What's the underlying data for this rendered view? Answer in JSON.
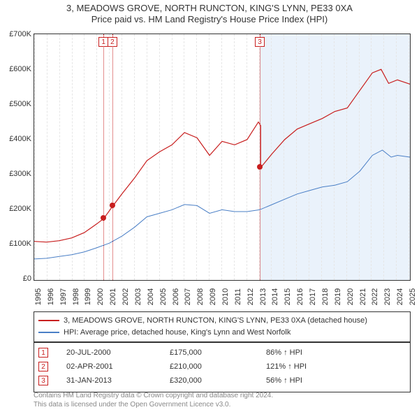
{
  "title_line1": "3, MEADOWS GROVE, NORTH RUNCTON, KING'S LYNN, PE33 0XA",
  "title_line2": "Price paid vs. HM Land Registry's House Price Index (HPI)",
  "chart": {
    "type": "line",
    "background_color": "#ffffff",
    "grid_color": "#e6e6e6",
    "border_color": "#333333",
    "shaded_region_color": "#eaf2fb",
    "marker_line_color": "#c81e1e",
    "x_range_years": [
      1995,
      2025
    ],
    "y_range_gbp": [
      0,
      700000
    ],
    "y_tick_step": 100000,
    "y_tick_labels": [
      "£0",
      "£100K",
      "£200K",
      "£300K",
      "£400K",
      "£500K",
      "£600K",
      "£700K"
    ],
    "x_ticks_years": [
      1995,
      1996,
      1997,
      1998,
      1999,
      2000,
      2001,
      2002,
      2003,
      2004,
      2005,
      2006,
      2007,
      2008,
      2009,
      2010,
      2011,
      2012,
      2013,
      2014,
      2015,
      2016,
      2017,
      2018,
      2019,
      2020,
      2021,
      2022,
      2023,
      2024,
      2025
    ],
    "series": {
      "property": {
        "label": "3, MEADOWS GROVE, NORTH RUNCTON, KING'S LYNN, PE33 0XA (detached house)",
        "color": "#c81e1e",
        "line_width": 1.2,
        "data": [
          [
            1995.0,
            110000
          ],
          [
            1996.0,
            108000
          ],
          [
            1997.0,
            112000
          ],
          [
            1998.0,
            120000
          ],
          [
            1999.0,
            135000
          ],
          [
            2000.0,
            160000
          ],
          [
            2000.55,
            175000
          ],
          [
            2001.26,
            210000
          ],
          [
            2002.0,
            245000
          ],
          [
            2003.0,
            290000
          ],
          [
            2004.0,
            340000
          ],
          [
            2005.0,
            365000
          ],
          [
            2006.0,
            385000
          ],
          [
            2007.0,
            420000
          ],
          [
            2008.0,
            405000
          ],
          [
            2009.0,
            355000
          ],
          [
            2010.0,
            395000
          ],
          [
            2011.0,
            385000
          ],
          [
            2012.0,
            400000
          ],
          [
            2012.9,
            450000
          ],
          [
            2013.08,
            440000
          ],
          [
            2013.08,
            320000
          ],
          [
            2014.0,
            360000
          ],
          [
            2015.0,
            400000
          ],
          [
            2016.0,
            430000
          ],
          [
            2017.0,
            445000
          ],
          [
            2018.0,
            460000
          ],
          [
            2019.0,
            480000
          ],
          [
            2020.0,
            490000
          ],
          [
            2021.0,
            540000
          ],
          [
            2022.0,
            590000
          ],
          [
            2022.7,
            600000
          ],
          [
            2023.3,
            560000
          ],
          [
            2024.0,
            570000
          ],
          [
            2025.0,
            558000
          ]
        ]
      },
      "hpi": {
        "label": "HPI: Average price, detached house, King's Lynn and West Norfolk",
        "color": "#4a7fc6",
        "line_width": 1.0,
        "data": [
          [
            1995.0,
            60000
          ],
          [
            1996.0,
            62000
          ],
          [
            1997.0,
            67000
          ],
          [
            1998.0,
            72000
          ],
          [
            1999.0,
            80000
          ],
          [
            2000.0,
            92000
          ],
          [
            2001.0,
            105000
          ],
          [
            2002.0,
            125000
          ],
          [
            2003.0,
            150000
          ],
          [
            2004.0,
            180000
          ],
          [
            2005.0,
            190000
          ],
          [
            2006.0,
            200000
          ],
          [
            2007.0,
            215000
          ],
          [
            2008.0,
            212000
          ],
          [
            2009.0,
            190000
          ],
          [
            2010.0,
            200000
          ],
          [
            2011.0,
            195000
          ],
          [
            2012.0,
            195000
          ],
          [
            2013.0,
            200000
          ],
          [
            2014.0,
            215000
          ],
          [
            2015.0,
            230000
          ],
          [
            2016.0,
            245000
          ],
          [
            2017.0,
            255000
          ],
          [
            2018.0,
            265000
          ],
          [
            2019.0,
            270000
          ],
          [
            2020.0,
            280000
          ],
          [
            2021.0,
            310000
          ],
          [
            2022.0,
            355000
          ],
          [
            2022.8,
            370000
          ],
          [
            2023.5,
            350000
          ],
          [
            2024.0,
            355000
          ],
          [
            2025.0,
            350000
          ]
        ]
      }
    },
    "markers": [
      {
        "n": "1",
        "year": 2000.55
      },
      {
        "n": "2",
        "year": 2001.26
      },
      {
        "n": "3",
        "year": 2013.08
      }
    ],
    "shaded_from_year": 2013.08,
    "sale_dots": [
      {
        "year": 2000.55,
        "price": 175000
      },
      {
        "year": 2001.26,
        "price": 210000
      },
      {
        "year": 2013.08,
        "price": 320000
      }
    ]
  },
  "legend": {
    "rows": [
      {
        "color": "#c81e1e",
        "label_path": "chart.series.property.label"
      },
      {
        "color": "#4a7fc6",
        "label_path": "chart.series.hpi.label"
      }
    ]
  },
  "trades": [
    {
      "n": "1",
      "date": "20-JUL-2000",
      "price": "£175,000",
      "delta": "86% ↑ HPI"
    },
    {
      "n": "2",
      "date": "02-APR-2001",
      "price": "£210,000",
      "delta": "121% ↑ HPI"
    },
    {
      "n": "3",
      "date": "31-JAN-2013",
      "price": "£320,000",
      "delta": "56% ↑ HPI"
    }
  ],
  "footnote_line1": "Contains HM Land Registry data © Crown copyright and database right 2024.",
  "footnote_line2": "This data is licensed under the Open Government Licence v3.0."
}
